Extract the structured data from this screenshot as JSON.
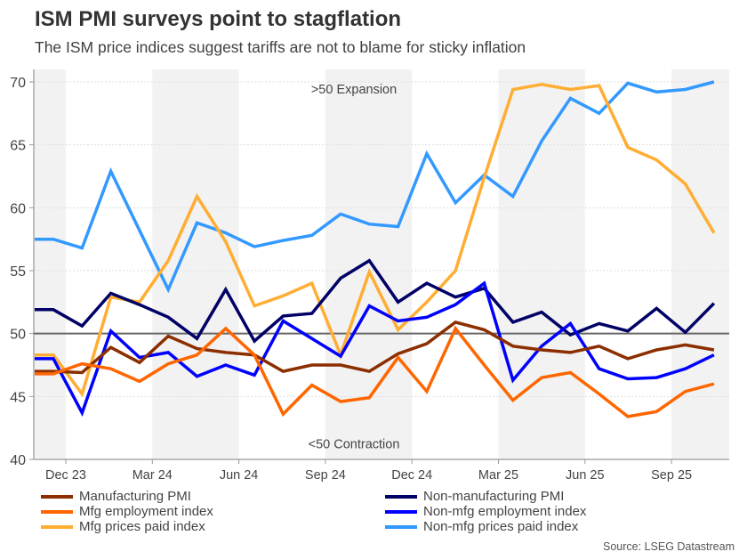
{
  "title": "ISM PMI surveys point to stagflation",
  "subtitle": "The ISM price indices suggest tariffs are not to blame for sticky inflation",
  "source": "Source: LSEG Datastream",
  "chart_data": {
    "type": "line",
    "title": "ISM PMI surveys point to stagflation",
    "subtitle": "The ISM price indices suggest tariffs are not to blame for sticky inflation",
    "xlabel": "",
    "ylabel": "",
    "ylim": [
      40,
      71
    ],
    "yticks": [
      40,
      45,
      50,
      55,
      60,
      65,
      70
    ],
    "grid": true,
    "reference_line": 50,
    "annotations": [
      {
        "text": ">50 Expansion",
        "value": 70
      },
      {
        "text": "<50 Contraction",
        "value": 41.8
      }
    ],
    "xtick_labels": [
      "Dec 23",
      "Mar 24",
      "Jun 24",
      "Sep 24",
      "Dec 24",
      "Mar 25",
      "Jun 25",
      "Sep 25"
    ],
    "x": [
      "Oct 23",
      "Nov 23",
      "Dec 23",
      "Jan 24",
      "Feb 24",
      "Mar 24",
      "Apr 24",
      "May 24",
      "Jun 24",
      "Jul 24",
      "Aug 24",
      "Sep 24",
      "Oct 24",
      "Nov 24",
      "Dec 24",
      "Jan 25",
      "Feb 25",
      "Mar 25",
      "Apr 25",
      "May 25",
      "Jun 25",
      "Jul 25",
      "Aug 25",
      "Sep 25",
      "Oct 25"
    ],
    "legend_position": "bottom",
    "series": [
      {
        "name": "Manufacturing PMI",
        "color": "#8B2E00",
        "values": [
          47.0,
          47.0,
          46.9,
          48.9,
          47.7,
          49.8,
          48.8,
          48.5,
          48.3,
          47.0,
          47.5,
          47.5,
          47.0,
          48.4,
          49.2,
          50.9,
          50.3,
          49.0,
          48.7,
          48.5,
          49.0,
          48.0,
          48.7,
          49.1,
          48.7
        ]
      },
      {
        "name": "Mfg employment index",
        "color": "#FF6600",
        "values": [
          46.8,
          46.8,
          47.6,
          47.2,
          46.2,
          47.6,
          48.3,
          50.4,
          48.3,
          43.6,
          45.9,
          44.6,
          44.9,
          48.1,
          45.4,
          50.4,
          47.5,
          44.7,
          46.5,
          46.9,
          45.2,
          43.4,
          43.8,
          45.4,
          46.0
        ]
      },
      {
        "name": "Mfg prices paid index",
        "color": "#FFAD33",
        "values": [
          48.3,
          48.3,
          45.2,
          52.9,
          52.5,
          55.8,
          60.9,
          57.3,
          52.2,
          53.0,
          54.0,
          48.3,
          54.9,
          50.3,
          52.5,
          55.0,
          62.4,
          69.4,
          69.8,
          69.4,
          69.7,
          64.8,
          63.8,
          61.9,
          58.0
        ]
      },
      {
        "name": "Non-manufacturing PMI",
        "color": "#000066",
        "values": [
          51.9,
          51.9,
          50.6,
          53.2,
          52.3,
          51.3,
          49.6,
          53.5,
          49.4,
          51.4,
          51.6,
          54.4,
          55.8,
          52.5,
          54.0,
          52.9,
          53.6,
          50.9,
          51.7,
          49.9,
          50.8,
          50.2,
          52.0,
          50.1,
          52.4
        ]
      },
      {
        "name": "Non-mfg employment index",
        "color": "#0000FF",
        "values": [
          48.0,
          48.0,
          43.7,
          50.2,
          48.1,
          48.5,
          46.6,
          47.5,
          46.7,
          51.0,
          49.6,
          48.2,
          52.2,
          51.0,
          51.3,
          52.3,
          54.0,
          46.3,
          49.0,
          50.8,
          47.2,
          46.4,
          46.5,
          47.2,
          48.3
        ]
      },
      {
        "name": "Non-mfg prices paid index",
        "color": "#3399FF",
        "values": [
          57.5,
          57.5,
          56.8,
          62.9,
          58.2,
          53.5,
          58.8,
          58.0,
          56.9,
          57.4,
          57.8,
          59.5,
          58.7,
          58.5,
          64.3,
          60.4,
          62.6,
          60.9,
          65.3,
          68.7,
          67.5,
          69.9,
          69.2,
          69.4,
          70.0
        ]
      }
    ]
  }
}
